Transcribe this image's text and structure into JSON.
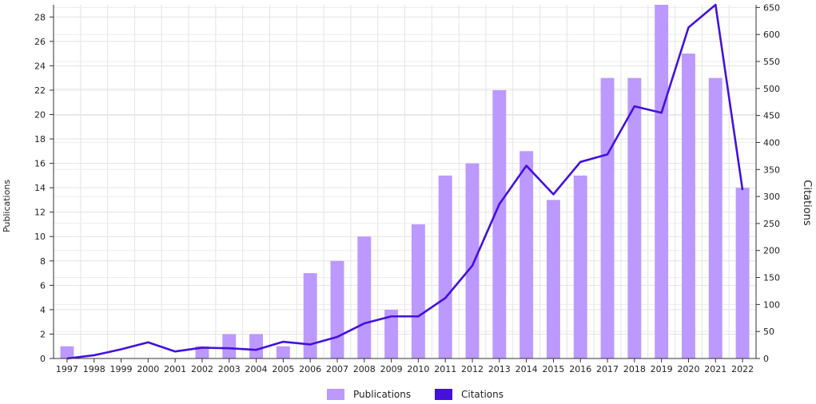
{
  "chart_data": {
    "type": "bar",
    "categories": [
      "1997",
      "1998",
      "1999",
      "2000",
      "2001",
      "2002",
      "2003",
      "2004",
      "2005",
      "2006",
      "2007",
      "2008",
      "2009",
      "2010",
      "2011",
      "2012",
      "2013",
      "2014",
      "2015",
      "2016",
      "2017",
      "2018",
      "2019",
      "2020",
      "2021",
      "2022"
    ],
    "series": [
      {
        "name": "Publications",
        "type": "bar",
        "axis": "left",
        "color": "#bb99ff",
        "values": [
          1,
          0,
          0,
          0,
          0,
          1,
          2,
          2,
          1,
          7,
          8,
          10,
          4,
          11,
          15,
          16,
          22,
          17,
          13,
          15,
          23,
          23,
          29,
          25,
          23,
          14
        ]
      },
      {
        "name": "Citations",
        "type": "line",
        "axis": "right",
        "color": "#4411dd",
        "values": [
          0,
          6,
          17,
          30,
          13,
          20,
          19,
          16,
          31,
          26,
          40,
          65,
          78,
          78,
          112,
          172,
          286,
          357,
          304,
          364,
          378,
          467,
          455,
          613,
          655,
          312
        ]
      }
    ],
    "title": "",
    "xlabel": "",
    "ylabel": "Publications",
    "y2label": "Citations",
    "ylim": [
      0,
      29
    ],
    "y2lim": [
      0,
      655
    ],
    "yticks": [
      "0",
      "2",
      "4",
      "6",
      "8",
      "10",
      "12",
      "14",
      "16",
      "18",
      "20",
      "22",
      "24",
      "26",
      "28"
    ],
    "y2ticks": [
      "0",
      "50",
      "100",
      "150",
      "200",
      "250",
      "300",
      "350",
      "400",
      "450",
      "500",
      "550",
      "600",
      "650"
    ],
    "grid": true,
    "legend": "bottom-center"
  }
}
